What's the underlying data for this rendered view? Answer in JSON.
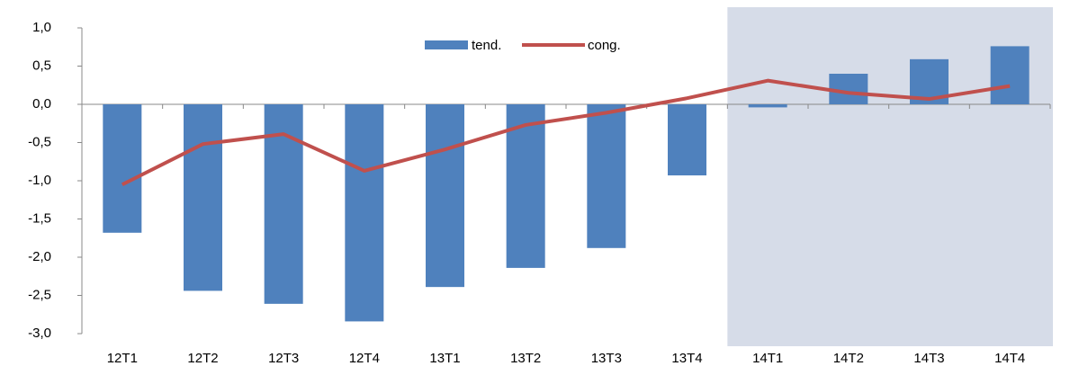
{
  "chart_data": {
    "type": "bar-line",
    "categories": [
      "12T1",
      "12T2",
      "12T3",
      "12T4",
      "13T1",
      "13T2",
      "13T3",
      "13T4",
      "14T1",
      "14T2",
      "14T3",
      "14T4"
    ],
    "series": [
      {
        "name": "tend.",
        "type": "bar",
        "color": "#4f81bd",
        "values": [
          -1.68,
          -2.44,
          -2.61,
          -2.84,
          -2.39,
          -2.14,
          -1.88,
          -0.93,
          -0.04,
          0.4,
          0.59,
          0.76
        ]
      },
      {
        "name": "cong.",
        "type": "line",
        "color": "#c0504d",
        "values": [
          -1.05,
          -0.52,
          -0.39,
          -0.87,
          -0.59,
          -0.27,
          -0.11,
          0.08,
          0.31,
          0.15,
          0.07,
          0.24
        ]
      }
    ],
    "ylim": [
      -3,
      1
    ],
    "yticks": [
      {
        "value": -3,
        "label": "-3,0"
      },
      {
        "value": -2.5,
        "label": "-2,5"
      },
      {
        "value": -2,
        "label": "-2,0"
      },
      {
        "value": -1.5,
        "label": "-1,5"
      },
      {
        "value": -1,
        "label": "-1,0"
      },
      {
        "value": -0.5,
        "label": "-0,5"
      },
      {
        "value": 0,
        "label": "0,0"
      },
      {
        "value": 0.5,
        "label": "0,5"
      },
      {
        "value": 1,
        "label": "1,0"
      }
    ],
    "highlight_from": 8,
    "highlight_color": "#d6dce8",
    "legend": "top"
  }
}
